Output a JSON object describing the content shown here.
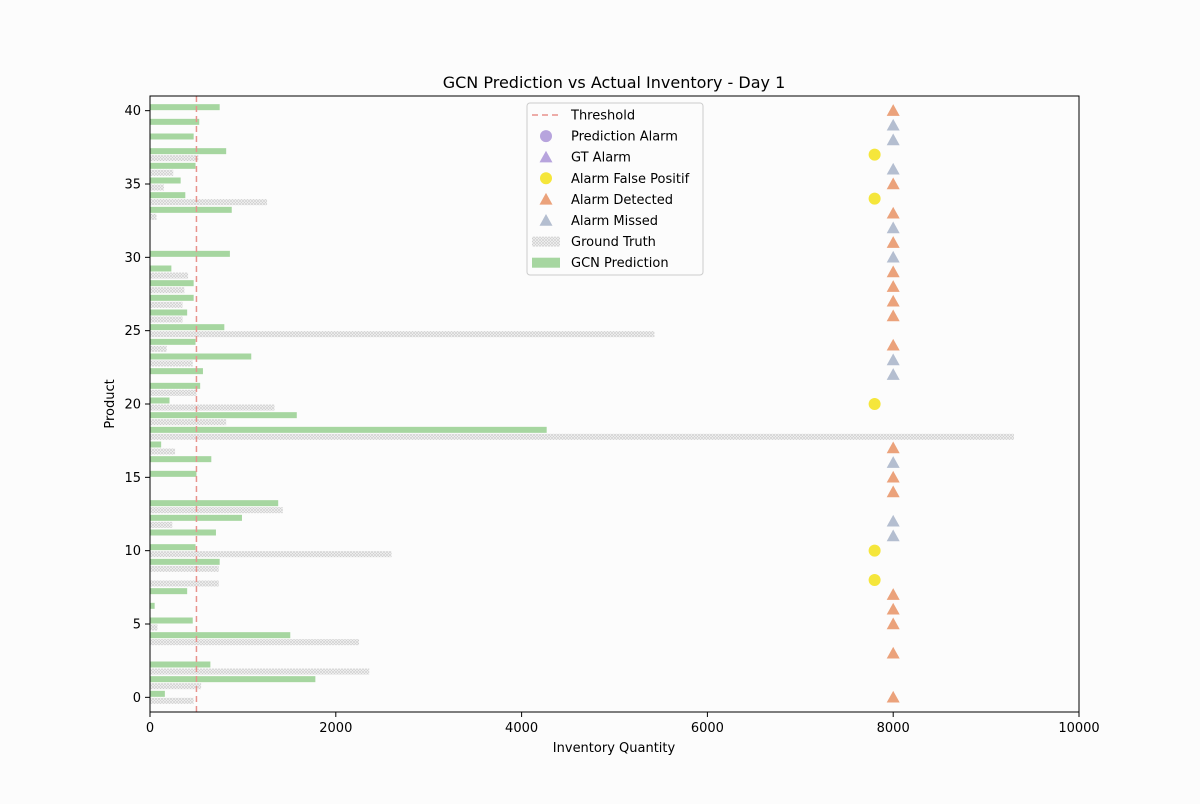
{
  "chart_data": {
    "type": "bar",
    "orientation": "horizontal",
    "title": "GCN Prediction vs Actual Inventory - Day 1",
    "xlabel": "Inventory Quantity",
    "ylabel": "Product",
    "xlim": [
      0,
      10000
    ],
    "ylim": [
      -1,
      41
    ],
    "xticks": [
      0,
      2000,
      4000,
      6000,
      8000,
      10000
    ],
    "yticks": [
      0,
      5,
      10,
      15,
      20,
      25,
      30,
      35,
      40
    ],
    "grid": false,
    "legend_position": "upper center",
    "threshold": 500,
    "products": [
      0,
      1,
      2,
      3,
      4,
      5,
      6,
      7,
      8,
      9,
      10,
      11,
      12,
      13,
      14,
      15,
      16,
      17,
      18,
      19,
      20,
      21,
      22,
      23,
      24,
      25,
      26,
      27,
      28,
      29,
      30,
      31,
      32,
      33,
      34,
      35,
      36,
      37,
      38,
      39,
      40
    ],
    "series": [
      {
        "name": "Ground Truth",
        "values": [
          470,
          550,
          2360,
          0,
          2250,
          80,
          0,
          0,
          740,
          740,
          2600,
          0,
          240,
          1430,
          0,
          0,
          0,
          270,
          9300,
          820,
          1340,
          500,
          0,
          460,
          180,
          5430,
          350,
          350,
          370,
          410,
          0,
          0,
          0,
          70,
          1260,
          150,
          250,
          520,
          0,
          0,
          0
        ]
      },
      {
        "name": "GCN Prediction",
        "values": [
          160,
          1780,
          650,
          0,
          1510,
          460,
          50,
          400,
          0,
          750,
          490,
          710,
          990,
          1380,
          0,
          500,
          660,
          120,
          4270,
          1580,
          210,
          540,
          570,
          1090,
          490,
          800,
          400,
          470,
          470,
          230,
          860,
          0,
          0,
          880,
          380,
          330,
          490,
          820,
          470,
          530,
          750
        ]
      }
    ],
    "alarm_markers": [
      {
        "name": "Alarm Detected",
        "x": 8000,
        "products": [
          0,
          3,
          5,
          6,
          7,
          14,
          15,
          17,
          24,
          26,
          27,
          28,
          29,
          31,
          33,
          35,
          40
        ]
      },
      {
        "name": "Alarm Missed",
        "x": 8000,
        "products": [
          11,
          12,
          16,
          22,
          23,
          30,
          32,
          36,
          38,
          39
        ]
      },
      {
        "name": "Alarm False Positif",
        "x": 7800,
        "products": [
          8,
          10,
          20,
          34,
          37
        ]
      }
    ],
    "legend": [
      {
        "label": "Threshold",
        "kind": "dashline",
        "color": "#e8928c"
      },
      {
        "label": "Prediction Alarm",
        "kind": "circle",
        "color": "#b7a4dd"
      },
      {
        "label": "GT Alarm",
        "kind": "triangle",
        "color": "#b7a4dd"
      },
      {
        "label": "Alarm False Positif",
        "kind": "circle",
        "color": "#f5e63b"
      },
      {
        "label": "Alarm Detected",
        "kind": "triangle",
        "color": "#eba27b"
      },
      {
        "label": "Alarm Missed",
        "kind": "triangle",
        "color": "#b4bed0"
      },
      {
        "label": "Ground Truth",
        "kind": "hatchbar",
        "color": "#dcdcdc"
      },
      {
        "label": "GCN Prediction",
        "kind": "bar",
        "color": "#a6d6a0"
      }
    ],
    "colors": {
      "prediction": "#a6d6a0",
      "ground_truth": "#dcdcdc",
      "threshold": "#e8928c",
      "alarm_detected": "#eba27b",
      "alarm_missed": "#b4bed0",
      "alarm_false_positive": "#f5e63b"
    }
  }
}
